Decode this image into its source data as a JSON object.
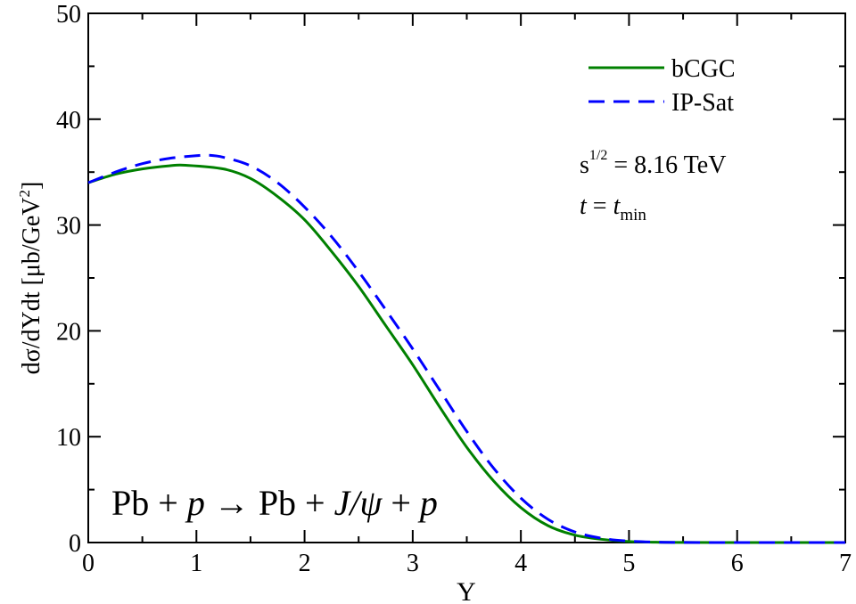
{
  "chart_data": {
    "type": "line",
    "xlabel": "Y",
    "ylabel": "dσ/dYdt [μb/GeV²]",
    "ylabel_parts": {
      "main": "dσ/dYdt [μb/GeV",
      "sup": "2",
      "end": "]"
    },
    "xlim": [
      0,
      7
    ],
    "ylim": [
      0,
      50
    ],
    "xticks": [
      0,
      1,
      2,
      3,
      4,
      5,
      6,
      7
    ],
    "yticks": [
      0,
      10,
      20,
      30,
      40,
      50
    ],
    "grid": false,
    "legend_position": "top-right",
    "series": [
      {
        "name": "bCGC",
        "color": "#008000",
        "style": "solid",
        "x": [
          0,
          0.25,
          0.5,
          0.75,
          0.9,
          1.25,
          1.5,
          1.75,
          2.0,
          2.25,
          2.5,
          2.75,
          3.0,
          3.25,
          3.5,
          3.75,
          4.0,
          4.25,
          4.5,
          4.75,
          5.0,
          5.25,
          5.5,
          6.0,
          6.5,
          7.0
        ],
        "values": [
          34.0,
          34.8,
          35.3,
          35.6,
          35.65,
          35.3,
          34.4,
          32.7,
          30.5,
          27.5,
          24.2,
          20.5,
          16.8,
          12.8,
          9.0,
          5.8,
          3.3,
          1.6,
          0.7,
          0.3,
          0.1,
          0.03,
          0.01,
          0,
          0,
          0
        ]
      },
      {
        "name": "IP-Sat",
        "color": "#0000ff",
        "style": "dashed",
        "x": [
          0,
          0.25,
          0.5,
          0.75,
          1.0,
          1.1,
          1.25,
          1.5,
          1.75,
          2.0,
          2.25,
          2.5,
          2.75,
          3.0,
          3.25,
          3.5,
          3.75,
          4.0,
          4.25,
          4.5,
          4.75,
          5.0,
          5.25,
          5.5,
          6.0,
          6.5,
          7.0
        ],
        "values": [
          34.0,
          35.0,
          35.8,
          36.3,
          36.55,
          36.6,
          36.4,
          35.6,
          34.0,
          31.7,
          28.9,
          25.6,
          22.0,
          18.3,
          14.4,
          10.5,
          7.0,
          4.2,
          2.2,
          1.0,
          0.4,
          0.13,
          0.04,
          0.01,
          0,
          0,
          0
        ]
      }
    ],
    "annotations": {
      "energy": {
        "base": "s",
        "sup": "1/2",
        "rest": " = 8.16 TeV"
      },
      "t_cond": {
        "lhs": "t",
        "eq": " = ",
        "rhs": "t",
        "sub": "min"
      },
      "process": {
        "p1": "Pb + ",
        "p2": "p",
        "p3": " → Pb + ",
        "p4": "J/ψ",
        "p5": " + ",
        "p6": "p"
      }
    }
  }
}
